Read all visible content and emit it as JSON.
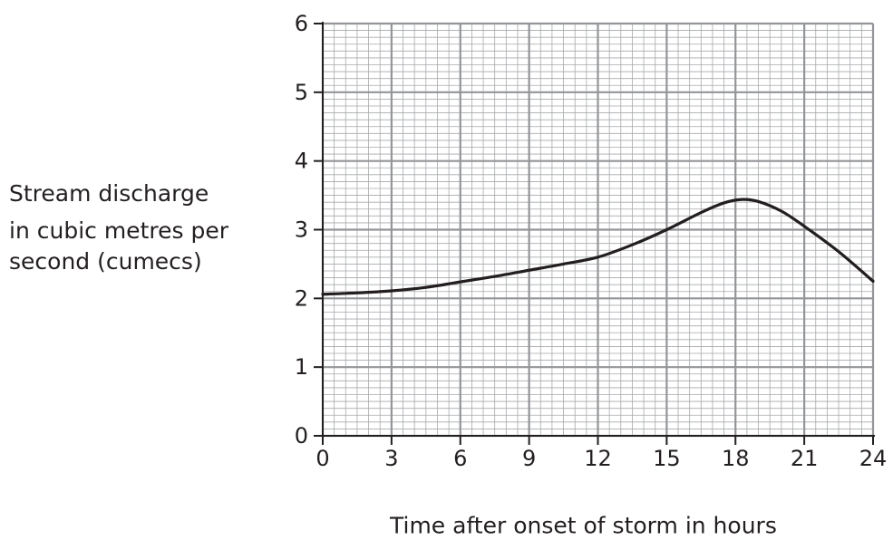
{
  "chart_data": {
    "type": "line",
    "title": "",
    "ylabel_lines": [
      "Stream discharge",
      "in cubic metres per",
      "second (cumecs)"
    ],
    "xlabel": "Time after onset of storm in hours",
    "xlim": [
      0,
      24
    ],
    "ylim": [
      0,
      6
    ],
    "x_ticks": [
      0,
      3,
      6,
      9,
      12,
      15,
      18,
      21,
      24
    ],
    "y_ticks": [
      0,
      1,
      2,
      3,
      4,
      5,
      6
    ],
    "x_tick_labels": [
      "0",
      "3",
      "6",
      "9",
      "12",
      "15",
      "18",
      "21",
      "24"
    ],
    "y_tick_labels": [
      "0",
      "1",
      "2",
      "3",
      "4",
      "5",
      "6"
    ],
    "grid": true,
    "series": [
      {
        "color": "#231f20",
        "x": [
          0,
          1.5,
          3,
          4.5,
          6,
          7.5,
          9,
          10.5,
          12,
          13.5,
          15,
          16.5,
          17.5,
          18.3,
          19,
          20,
          21,
          22.5,
          24
        ],
        "y": [
          2.06,
          2.08,
          2.11,
          2.16,
          2.24,
          2.32,
          2.41,
          2.5,
          2.6,
          2.78,
          3.0,
          3.25,
          3.39,
          3.44,
          3.41,
          3.27,
          3.05,
          2.68,
          2.25
        ]
      }
    ]
  }
}
